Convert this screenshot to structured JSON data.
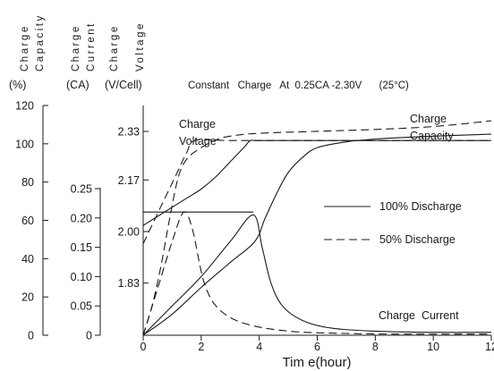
{
  "chart_data": {
    "type": "line",
    "title": "Constant   Charge   At  0.25CA -2.30V      (25°C)",
    "xlabel": "Tim e(hour)",
    "xlim": [
      0,
      12
    ],
    "x_ticks": [
      0,
      2,
      4,
      6,
      8,
      10,
      12
    ],
    "y_axes": [
      {
        "key": "capacity",
        "rot_line1": "Charge",
        "rot_line2": "Capacity",
        "unit": "(%)",
        "range": [
          0,
          120
        ],
        "ticks": [
          "0",
          "20",
          "40",
          "60",
          "80",
          "100",
          "120"
        ]
      },
      {
        "key": "current",
        "rot_line1": "Charge",
        "rot_line2": "Current",
        "unit": "(CA)",
        "range": [
          0,
          0.25
        ],
        "ticks": [
          "0",
          "0.05",
          "0.10",
          "0.15",
          "0.20",
          "0.25"
        ]
      },
      {
        "key": "voltage",
        "rot_line1": "Charge",
        "rot_line2": "Voltage",
        "unit": "(V/Cell)",
        "ticks": [
          "1.83",
          "2.00",
          "2.17",
          "2.33"
        ]
      }
    ],
    "annotations": {
      "charge_voltage": [
        "Charge",
        "Voltage"
      ],
      "charge_capacity": [
        "Charge",
        "Capacity"
      ],
      "charge_current": "Charge  Current"
    },
    "legend": [
      {
        "label": "100% Discharge",
        "style": "solid"
      },
      {
        "label": "50% Discharge",
        "style": "dashed"
      }
    ],
    "series": [
      {
        "style": "solid",
        "axis": "voltage",
        "points": [
          [
            0,
            2.02
          ],
          [
            0.5,
            2.05
          ],
          [
            1,
            2.08
          ],
          [
            1.5,
            2.11
          ],
          [
            2,
            2.14
          ],
          [
            2.5,
            2.18
          ],
          [
            3,
            2.23
          ],
          [
            3.5,
            2.28
          ],
          [
            3.7,
            2.3
          ],
          [
            4,
            2.3
          ],
          [
            6,
            2.3
          ],
          [
            8,
            2.3
          ],
          [
            10,
            2.3
          ],
          [
            12,
            2.3
          ]
        ]
      },
      {
        "style": "dashed",
        "axis": "voltage",
        "points": [
          [
            0,
            1.96
          ],
          [
            0.3,
            2.02
          ],
          [
            0.6,
            2.08
          ],
          [
            0.9,
            2.14
          ],
          [
            1.2,
            2.2
          ],
          [
            1.5,
            2.26
          ],
          [
            1.8,
            2.3
          ],
          [
            3,
            2.3
          ],
          [
            6,
            2.3
          ],
          [
            9,
            2.3
          ],
          [
            12,
            2.3
          ]
        ]
      },
      {
        "style": "solid",
        "axis": "capacity",
        "points": [
          [
            0,
            0
          ],
          [
            1,
            11
          ],
          [
            2,
            25
          ],
          [
            3,
            38
          ],
          [
            3.85,
            49
          ],
          [
            4.2,
            61
          ],
          [
            4.6,
            74
          ],
          [
            5,
            85
          ],
          [
            5.5,
            93
          ],
          [
            6,
            98
          ],
          [
            7,
            101
          ],
          [
            8,
            102.5
          ],
          [
            10,
            104
          ],
          [
            12,
            105
          ]
        ]
      },
      {
        "style": "dashed",
        "axis": "capacity",
        "points": [
          [
            0,
            0
          ],
          [
            0.3,
            15
          ],
          [
            0.6,
            35
          ],
          [
            0.9,
            60
          ],
          [
            1.2,
            82
          ],
          [
            1.5,
            92
          ],
          [
            2,
            98
          ],
          [
            2.5,
            102
          ],
          [
            3,
            104
          ],
          [
            4,
            105.5
          ],
          [
            6,
            106.5
          ],
          [
            8,
            107.5
          ],
          [
            10,
            109
          ],
          [
            12,
            112
          ]
        ]
      },
      {
        "style": "solid",
        "axis": "current",
        "points": [
          [
            0,
            0
          ],
          [
            1,
            0.05
          ],
          [
            2,
            0.1
          ],
          [
            3,
            0.16
          ],
          [
            3.8,
            0.205
          ],
          [
            4.1,
            0.15
          ],
          [
            4.4,
            0.09
          ],
          [
            4.8,
            0.05
          ],
          [
            5.5,
            0.025
          ],
          [
            6.5,
            0.012
          ],
          [
            8,
            0.007
          ],
          [
            10,
            0.005
          ],
          [
            12,
            0.005
          ]
        ]
      },
      {
        "style": "dashed",
        "axis": "current",
        "points": [
          [
            0,
            0
          ],
          [
            0.5,
            0.08
          ],
          [
            1,
            0.16
          ],
          [
            1.4,
            0.21
          ],
          [
            1.7,
            0.18
          ],
          [
            2.1,
            0.09
          ],
          [
            2.6,
            0.045
          ],
          [
            3.5,
            0.02
          ],
          [
            5,
            0.007
          ],
          [
            7,
            0.003
          ],
          [
            9,
            0.002
          ],
          [
            12,
            0.002
          ]
        ]
      },
      {
        "style": "solid",
        "axis": "current",
        "points": [
          [
            0,
            0.21
          ],
          [
            3.8,
            0.21
          ]
        ]
      }
    ]
  }
}
